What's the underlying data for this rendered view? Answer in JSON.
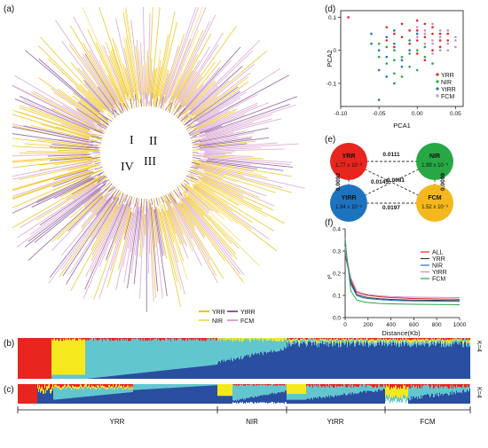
{
  "panels": {
    "a": "(a)",
    "b": "(b)",
    "c": "(c)",
    "d": "(d)",
    "e": "(e)",
    "f": "(f)"
  },
  "colors": {
    "YRR": "#f0c419",
    "NIR": "#d9a4d0",
    "YtRR": "#8c5a9e",
    "FCM": "#f7dc6f",
    "red": "#e8251f",
    "green": "#27a845",
    "blue": "#1e73be",
    "orange": "#f5b81c",
    "cyan": "#62c6cf",
    "darkblue": "#2a4ea0",
    "yellow": "#f5e81d"
  },
  "tree": {
    "clades": [
      "I",
      "II",
      "III",
      "IV"
    ],
    "legend": [
      "YRR",
      "NIR",
      "YtRR",
      "FCM"
    ]
  },
  "structure": {
    "k_label_b": "K=4",
    "k_label_c": "K=4",
    "groups": [
      "YRR",
      "NIR",
      "YtRR",
      "FCM"
    ]
  },
  "network": {
    "nodes": [
      {
        "name": "YRR",
        "value": "1.77 x 10⁻³",
        "color": "#e8251f"
      },
      {
        "name": "NIR",
        "value": "1.99 x 10⁻³",
        "color": "#27a845"
      },
      {
        "name": "YtRR",
        "value": "1.84 x 10⁻³",
        "color": "#1e73be"
      },
      {
        "name": "FCM",
        "value": "1.52 x 10⁻³",
        "color": "#f5b81c"
      }
    ],
    "edges": [
      {
        "from": "YRR",
        "to": "NIR",
        "label": "0.0111"
      },
      {
        "from": "YRR",
        "to": "YtRR",
        "label": "0.0092"
      },
      {
        "from": "NIR",
        "to": "FCM",
        "label": "0.0099"
      },
      {
        "from": "YtRR",
        "to": "FCM",
        "label": "0.0197"
      },
      {
        "from": "YRR",
        "to": "FCM",
        "label": "0.0081"
      },
      {
        "from": "NIR",
        "to": "YtRR",
        "label": "0.0145"
      }
    ]
  },
  "chart_data": [
    {
      "type": "scatter",
      "panel": "d",
      "xlabel": "PCA1",
      "ylabel": "PCA2",
      "xlim": [
        -0.1,
        0.06
      ],
      "ylim": [
        -0.17,
        0.12
      ],
      "xticks": [
        "-0.10",
        "-0.05",
        "0.00",
        "0.05"
      ],
      "yticks": [
        "0.1",
        "0",
        "-0.1"
      ],
      "legend": [
        "YRR",
        "NIR",
        "YtRR",
        "FCM"
      ],
      "legend_position": "bottom-right",
      "series": [
        {
          "name": "YRR",
          "color": "#e8251f",
          "points": [
            [
              -0.09,
              0.1
            ],
            [
              -0.04,
              0.07
            ],
            [
              -0.03,
              0.05
            ],
            [
              -0.02,
              0.08
            ],
            [
              0.0,
              0.06
            ],
            [
              0.01,
              0.04
            ],
            [
              0.02,
              0.07
            ],
            [
              0.03,
              0.03
            ],
            [
              -0.01,
              0.02
            ],
            [
              0.0,
              -0.01
            ],
            [
              0.02,
              0.0
            ],
            [
              0.03,
              0.05
            ],
            [
              -0.02,
              0.04
            ],
            [
              0.01,
              0.08
            ],
            [
              0.04,
              0.03
            ],
            [
              -0.03,
              0.01
            ],
            [
              0.0,
              0.03
            ],
            [
              0.02,
              0.05
            ],
            [
              -0.01,
              0.06
            ],
            [
              0.03,
              0.01
            ],
            [
              -0.04,
              0.03
            ],
            [
              0.01,
              -0.03
            ],
            [
              0.04,
              0.05
            ],
            [
              0.0,
              0.09
            ]
          ]
        },
        {
          "name": "NIR",
          "color": "#27a845",
          "points": [
            [
              -0.05,
              0.02
            ],
            [
              -0.04,
              -0.04
            ],
            [
              -0.03,
              -0.07
            ],
            [
              -0.02,
              -0.02
            ],
            [
              -0.01,
              -0.05
            ],
            [
              0.0,
              0.0
            ],
            [
              0.01,
              -0.02
            ],
            [
              -0.03,
              0.0
            ],
            [
              -0.05,
              -0.02
            ],
            [
              0.02,
              -0.04
            ],
            [
              -0.02,
              -0.08
            ],
            [
              0.0,
              -0.06
            ],
            [
              -0.04,
              0.01
            ],
            [
              0.01,
              0.01
            ],
            [
              -0.01,
              -0.01
            ],
            [
              -0.03,
              -0.03
            ]
          ]
        },
        {
          "name": "YtRR",
          "color": "#1e73be",
          "points": [
            [
              -0.06,
              0.05
            ],
            [
              -0.05,
              0.0
            ],
            [
              -0.04,
              -0.02
            ],
            [
              -0.05,
              -0.06
            ],
            [
              -0.03,
              -0.1
            ],
            [
              -0.02,
              -0.05
            ],
            [
              -0.04,
              0.04
            ],
            [
              -0.03,
              0.02
            ],
            [
              -0.01,
              0.03
            ],
            [
              -0.05,
              -0.15
            ],
            [
              -0.06,
              0.02
            ],
            [
              -0.02,
              -0.03
            ],
            [
              0.0,
              0.05
            ],
            [
              -0.04,
              -0.08
            ],
            [
              -0.03,
              0.06
            ],
            [
              -0.01,
              0.0
            ]
          ]
        },
        {
          "name": "FCM",
          "color": "#c98bd0",
          "points": [
            [
              0.0,
              0.07
            ],
            [
              0.01,
              0.05
            ],
            [
              0.02,
              0.03
            ],
            [
              0.03,
              0.06
            ],
            [
              0.04,
              0.02
            ],
            [
              0.05,
              0.04
            ],
            [
              0.02,
              0.02
            ],
            [
              0.03,
              0.0
            ],
            [
              0.04,
              0.06
            ],
            [
              0.01,
              0.06
            ],
            [
              0.05,
              0.01
            ],
            [
              0.02,
              0.08
            ],
            [
              0.03,
              0.04
            ],
            [
              0.04,
              0.0
            ],
            [
              0.0,
              0.04
            ],
            [
              0.01,
              0.02
            ],
            [
              0.05,
              0.03
            ],
            [
              0.02,
              -0.01
            ]
          ]
        }
      ]
    },
    {
      "type": "line",
      "panel": "f",
      "xlabel": "Distance(Kb)",
      "ylabel": "r²",
      "xlim": [
        0,
        1000
      ],
      "ylim": [
        0,
        0.4
      ],
      "xticks": [
        "0",
        "200",
        "400",
        "600",
        "800",
        "1000"
      ],
      "yticks": [
        "0.0",
        "0.1",
        "0.2",
        "0.3",
        "0.4"
      ],
      "legend": [
        "ALL",
        "YRR",
        "NIR",
        "YtRR",
        "FCM"
      ],
      "legend_position": "top-right",
      "x": [
        0,
        10,
        50,
        100,
        150,
        200,
        300,
        400,
        500,
        600,
        800,
        1000
      ],
      "series": [
        {
          "name": "ALL",
          "color": "#e8251f",
          "values": [
            0.29,
            0.26,
            0.17,
            0.115,
            0.105,
            0.1,
            0.094,
            0.09,
            0.088,
            0.086,
            0.084,
            0.083
          ]
        },
        {
          "name": "YRR",
          "color": "#3b3b3b",
          "values": [
            0.3,
            0.27,
            0.16,
            0.105,
            0.096,
            0.09,
            0.085,
            0.082,
            0.08,
            0.079,
            0.078,
            0.077
          ]
        },
        {
          "name": "NIR",
          "color": "#1e73be",
          "values": [
            0.31,
            0.27,
            0.15,
            0.1,
            0.09,
            0.086,
            0.081,
            0.078,
            0.076,
            0.075,
            0.074,
            0.073
          ]
        },
        {
          "name": "YtRR",
          "color": "#c98bd0",
          "values": [
            0.32,
            0.28,
            0.18,
            0.12,
            0.11,
            0.104,
            0.098,
            0.095,
            0.093,
            0.092,
            0.091,
            0.09
          ]
        },
        {
          "name": "FCM",
          "color": "#27a845",
          "values": [
            0.36,
            0.3,
            0.12,
            0.08,
            0.072,
            0.068,
            0.064,
            0.062,
            0.061,
            0.06,
            0.059,
            0.058
          ]
        }
      ]
    }
  ]
}
